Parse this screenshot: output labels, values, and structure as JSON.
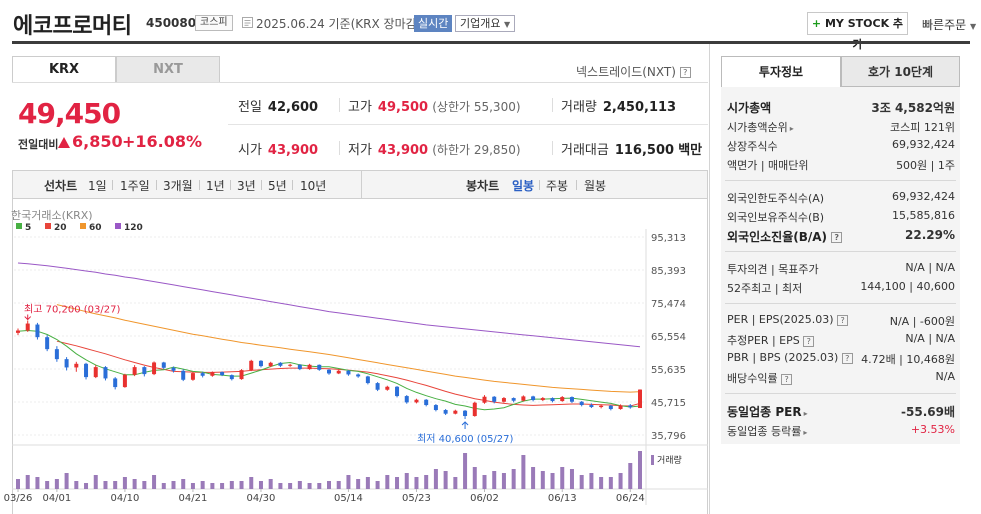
{
  "stock": {
    "name": "에코프로머티",
    "code": "450080",
    "market": "코스피",
    "date": "2025.06.24 기준(KRX 장마감)",
    "realtime": "실시간",
    "overview": "기업개요",
    "mystock": "MY STOCK 추가",
    "mystock_plus": "+",
    "quick_order": "빠른주문"
  },
  "tabs": {
    "krx": "KRX",
    "nxt": "NXT",
    "nxt_link": "넥스트레이드(NXT)"
  },
  "price": {
    "current": "49,450",
    "change_label": "전일대비",
    "change": "6,850",
    "change_pct": "+16.08%"
  },
  "quote": {
    "prev_label": "전일",
    "prev": "42,600",
    "high_label": "고가",
    "high": "49,500",
    "upper_limit": "(상한가 55,300)",
    "volume_label": "거래량",
    "volume": "2,450,113",
    "open_label": "시가",
    "open": "43,900",
    "low_label": "저가",
    "low": "43,900",
    "lower_limit": "(하한가 29,850)",
    "amount_label": "거래대금",
    "amount": "116,500",
    "amount_unit": "백만"
  },
  "periods": {
    "line": "선차트",
    "d1": "1일",
    "w1": "1주일",
    "m3": "3개월",
    "y1": "1년",
    "y3": "3년",
    "y5": "5년",
    "y10": "10년",
    "candle": "봉차트",
    "daily": "일봉",
    "weekly": "주봉",
    "monthly": "월봉"
  },
  "chart_data": {
    "type": "candlestick",
    "source": "한국거래소(KRX)",
    "ma_legend": [
      {
        "name": "5",
        "color": "#48b043"
      },
      {
        "name": "20",
        "color": "#e8453b"
      },
      {
        "name": "60",
        "color": "#f0962c"
      },
      {
        "name": "120",
        "color": "#9a58c6"
      }
    ],
    "y_ticks": [
      "95,313",
      "85,393",
      "75,474",
      "65,554",
      "55,635",
      "45,715",
      "35,796"
    ],
    "ylim": [
      35796,
      95313
    ],
    "x_labels": [
      "03/26",
      "04/01",
      "04/10",
      "04/21",
      "04/30",
      "05/14",
      "05/23",
      "06/02",
      "06/13",
      "06/24"
    ],
    "high_annotation": "최고 70,200 (03/27)",
    "low_annotation": "최저 40,600 (05/27)",
    "volume_label": "거래량",
    "candles": [
      [
        66500,
        67800,
        65800,
        67200
      ],
      [
        67200,
        70200,
        66800,
        69300
      ],
      [
        69000,
        69500,
        64500,
        65200
      ],
      [
        65200,
        65800,
        61000,
        61600
      ],
      [
        61600,
        62500,
        57800,
        58600
      ],
      [
        58600,
        59200,
        55200,
        56100
      ],
      [
        56100,
        57800,
        54800,
        57200
      ],
      [
        57200,
        57500,
        52500,
        53200
      ],
      [
        53200,
        56800,
        52900,
        56200
      ],
      [
        56200,
        56500,
        52200,
        52800
      ],
      [
        52800,
        53200,
        49500,
        50200
      ],
      [
        50200,
        54200,
        50000,
        53900
      ],
      [
        53900,
        56800,
        53500,
        56200
      ],
      [
        56200,
        56500,
        53400,
        54100
      ],
      [
        54100,
        57900,
        53800,
        57600
      ],
      [
        57600,
        57800,
        55600,
        56000
      ],
      [
        56000,
        56400,
        54600,
        55100
      ],
      [
        55100,
        55600,
        52000,
        52400
      ],
      [
        52400,
        54700,
        52100,
        54400
      ],
      [
        54400,
        54800,
        53100,
        53600
      ],
      [
        53600,
        54900,
        53300,
        54700
      ],
      [
        54700,
        54900,
        53500,
        53800
      ],
      [
        53800,
        54000,
        52200,
        52600
      ],
      [
        52600,
        55600,
        52400,
        55300
      ],
      [
        55300,
        58400,
        55000,
        58100
      ],
      [
        58100,
        58300,
        56100,
        56500
      ],
      [
        56500,
        57800,
        56200,
        57500
      ],
      [
        57500,
        57700,
        56200,
        56600
      ],
      [
        56600,
        57200,
        56300,
        56900
      ],
      [
        56900,
        57100,
        55300,
        55600
      ],
      [
        55600,
        57200,
        55400,
        56900
      ],
      [
        56900,
        57000,
        55100,
        55400
      ],
      [
        55400,
        55600,
        53900,
        54300
      ],
      [
        54300,
        55400,
        54100,
        55100
      ],
      [
        55100,
        55300,
        53600,
        54000
      ],
      [
        54000,
        54300,
        53000,
        53400
      ],
      [
        53400,
        53600,
        51000,
        51400
      ],
      [
        51400,
        51700,
        49000,
        49400
      ],
      [
        49400,
        50600,
        49100,
        50300
      ],
      [
        50300,
        50500,
        47100,
        47500
      ],
      [
        47500,
        47800,
        45200,
        45600
      ],
      [
        45600,
        46700,
        45300,
        46400
      ],
      [
        46400,
        46600,
        44400,
        44800
      ],
      [
        44800,
        45100,
        42900,
        43300
      ],
      [
        43300,
        43600,
        41800,
        42200
      ],
      [
        42200,
        43400,
        42000,
        43100
      ],
      [
        43100,
        43300,
        40600,
        41500
      ],
      [
        41500,
        45800,
        41300,
        45500
      ],
      [
        45500,
        47800,
        45200,
        47300
      ],
      [
        47300,
        47500,
        45300,
        45800
      ],
      [
        45800,
        47200,
        45500,
        46900
      ],
      [
        46900,
        47100,
        45600,
        46100
      ],
      [
        46100,
        47700,
        45900,
        47400
      ],
      [
        47400,
        47600,
        45900,
        46300
      ],
      [
        46300,
        47200,
        46000,
        46900
      ],
      [
        46900,
        47100,
        45600,
        46000
      ],
      [
        46000,
        47500,
        45800,
        47200
      ],
      [
        47200,
        47400,
        45400,
        45800
      ],
      [
        45800,
        46000,
        44400,
        44800
      ],
      [
        44800,
        45300,
        43900,
        44200
      ],
      [
        44200,
        45000,
        43800,
        44600
      ],
      [
        44600,
        44800,
        43200,
        43600
      ],
      [
        43600,
        45000,
        43400,
        44700
      ],
      [
        44700,
        45100,
        43700,
        44100
      ],
      [
        43900,
        49500,
        43900,
        49450
      ]
    ],
    "ma5": [
      67000,
      67200,
      67000,
      66000,
      64500,
      62500,
      60200,
      58400,
      56800,
      55700,
      54800,
      53900,
      53900,
      54600,
      55200,
      55400,
      56200,
      55600,
      54900,
      54700,
      54000,
      53800,
      53500,
      53500,
      54400,
      55300,
      56400,
      57300,
      57600,
      56900,
      56500,
      56300,
      56300,
      55800,
      55200,
      54900,
      54200,
      53300,
      52400,
      51300,
      49800,
      48600,
      47600,
      46700,
      46000,
      45000,
      44500,
      43800,
      43400,
      43600,
      44000,
      45000,
      46000,
      46600,
      46600,
      46700,
      46800,
      46900,
      46500,
      46100,
      45700,
      45300,
      44600,
      44200,
      44500
    ],
    "ma20": [
      null,
      null,
      null,
      null,
      64000,
      63300,
      62600,
      61800,
      61000,
      60200,
      59300,
      58400,
      57600,
      56800,
      56100,
      55500,
      54900,
      54800,
      54700,
      54600,
      54600,
      54700,
      54800,
      54900,
      55200,
      55400,
      55600,
      55800,
      55900,
      55900,
      55900,
      55800,
      55700,
      55500,
      55300,
      55000,
      54700,
      54200,
      53600,
      53000,
      52300,
      51500,
      50700,
      49800,
      48900,
      48100,
      47400,
      46700,
      46200,
      45700,
      45300,
      45000,
      44800,
      44700,
      44800,
      44900,
      45000,
      45100,
      45100,
      45000,
      44900,
      44800,
      44600,
      44500,
      45300
    ],
    "ma60": [
      null,
      null,
      null,
      null,
      75000,
      74300,
      73600,
      72900,
      72200,
      71600,
      71000,
      70300,
      69700,
      69100,
      68500,
      67900,
      67300,
      66700,
      66100,
      65600,
      65100,
      64600,
      64100,
      63600,
      63200,
      62800,
      62400,
      62000,
      61600,
      61200,
      60800,
      60400,
      60000,
      59500,
      59000,
      58500,
      58000,
      57500,
      57000,
      56500,
      56000,
      55500,
      55000,
      54500,
      54000,
      53500,
      53100,
      52700,
      52300,
      51900,
      51600,
      51300,
      51000,
      50700,
      50400,
      50100,
      49900,
      49700,
      49500,
      49300,
      49100,
      48900,
      48800,
      48700,
      48800
    ],
    "ma120": [
      87500,
      87300,
      87000,
      86700,
      86300,
      85900,
      85500,
      85100,
      84700,
      84200,
      83800,
      83300,
      82900,
      82400,
      81900,
      81400,
      80900,
      80400,
      79900,
      79400,
      78900,
      78400,
      77900,
      77400,
      76900,
      76400,
      75900,
      75400,
      74900,
      74400,
      73900,
      73400,
      72900,
      72500,
      72100,
      71700,
      71300,
      70900,
      70500,
      70100,
      69700,
      69300,
      68900,
      68600,
      68300,
      68000,
      67700,
      67400,
      67100,
      66800,
      66500,
      66200,
      65900,
      65600,
      65300,
      65000,
      64700,
      64400,
      64100,
      63800,
      63500,
      63200,
      62900,
      62600,
      62300
    ],
    "volume": [
      0.25,
      0.35,
      0.3,
      0.2,
      0.25,
      0.4,
      0.2,
      0.15,
      0.35,
      0.2,
      0.2,
      0.3,
      0.25,
      0.2,
      0.35,
      0.15,
      0.2,
      0.25,
      0.15,
      0.2,
      0.15,
      0.15,
      0.2,
      0.2,
      0.3,
      0.2,
      0.25,
      0.15,
      0.15,
      0.2,
      0.15,
      0.15,
      0.2,
      0.2,
      0.35,
      0.25,
      0.3,
      0.2,
      0.35,
      0.3,
      0.4,
      0.3,
      0.35,
      0.5,
      0.45,
      0.3,
      0.9,
      0.55,
      0.35,
      0.45,
      0.4,
      0.5,
      0.85,
      0.55,
      0.45,
      0.4,
      0.55,
      0.5,
      0.35,
      0.4,
      0.3,
      0.3,
      0.4,
      0.65,
      0.95
    ]
  },
  "invest": {
    "tab_info": "투자정보",
    "tab_ask": "호가 10단계",
    "rows": [
      {
        "label": "시가총액",
        "value": "3조 4,582억원"
      },
      {
        "label": "시가총액순위",
        "value": "코스피 121위"
      },
      {
        "label": "상장주식수",
        "value": "69,932,424"
      },
      {
        "label": "액면가 | 매매단위",
        "value": "500원 | 1주"
      },
      {
        "label": "외국인한도주식수(A)",
        "value": "69,932,424"
      },
      {
        "label": "외국인보유주식수(B)",
        "value": "15,585,816"
      },
      {
        "label": "외국인소진율(B/A)",
        "value": "22.29%"
      },
      {
        "label": "투자의견 | 목표주가",
        "value": "N/A | N/A"
      },
      {
        "label": "52주최고 | 최저",
        "value": "144,100 | 40,600"
      },
      {
        "label": "PER | EPS(2025.03)",
        "value": "N/A | -600원"
      },
      {
        "label": "추정PER | EPS",
        "value": "N/A | N/A"
      },
      {
        "label": "PBR | BPS (2025.03)",
        "value": "4.72배 | 10,468원"
      },
      {
        "label": "배당수익률",
        "value": "N/A"
      },
      {
        "label": "동일업종 PER",
        "value": "-55.69배"
      },
      {
        "label": "동일업종 등락률",
        "value": "+3.53%"
      }
    ]
  }
}
